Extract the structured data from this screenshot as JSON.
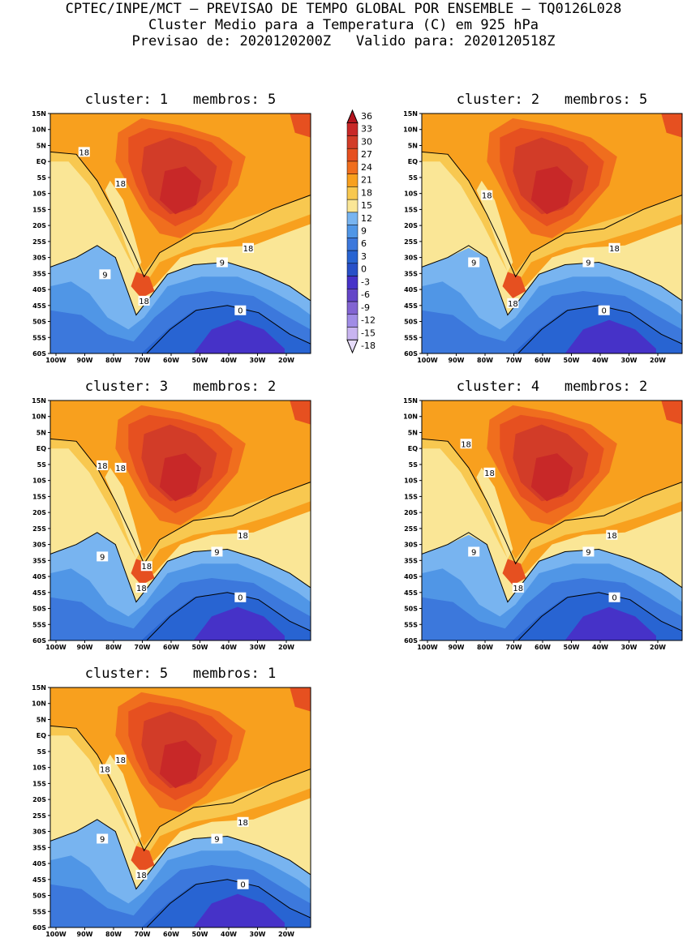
{
  "header": {
    "line1": "CPTEC/INPE/MCT – PREVISAO DE TEMPO GLOBAL POR ENSEMBLE – TQ0126L028",
    "line2": "Cluster Medio para a Temperatura (C) em 925 hPa",
    "line3": "Previsao de: 2020120200Z   Valido para: 2020120518Z"
  },
  "lat_ticks": [
    "15N",
    "10N",
    "5N",
    "EQ",
    "5S",
    "10S",
    "15S",
    "20S",
    "25S",
    "30S",
    "35S",
    "40S",
    "45S",
    "50S",
    "55S",
    "60S"
  ],
  "lon_ticks": [
    "100W",
    "90W",
    "80W",
    "70W",
    "60W",
    "50W",
    "40W",
    "30W",
    "20W"
  ],
  "colorbar": {
    "labels": [
      "36",
      "33",
      "30",
      "27",
      "24",
      "21",
      "18",
      "15",
      "12",
      "9",
      "6",
      "3",
      "0",
      "-3",
      "-6",
      "-9",
      "-12",
      "-15",
      "-18"
    ],
    "colors": [
      "#b4141e",
      "#c82828",
      "#d23c28",
      "#e65020",
      "#f06e1e",
      "#f8a01e",
      "#f8c850",
      "#fae696",
      "#78b4f0",
      "#5096e6",
      "#3c78dc",
      "#2864d2",
      "#2850c8",
      "#4632c8",
      "#6446c8",
      "#8264d2",
      "#a08ce6",
      "#c8b4f0",
      "#e6dcfa"
    ]
  },
  "panels": [
    {
      "title": "cluster: 1   membros: 5",
      "variant": 0,
      "labels": [
        [
          "18",
          0.13,
          0.16
        ],
        [
          "18",
          0.27,
          0.29
        ],
        [
          "18",
          0.76,
          0.56
        ],
        [
          "9",
          0.21,
          0.67
        ],
        [
          "9",
          0.66,
          0.62
        ],
        [
          "18",
          0.36,
          0.78
        ],
        [
          "0",
          0.73,
          0.82
        ]
      ]
    },
    {
      "title": "cluster: 2   membros: 5",
      "variant": 1,
      "labels": [
        [
          "18",
          0.25,
          0.34
        ],
        [
          "18",
          0.74,
          0.56
        ],
        [
          "9",
          0.2,
          0.62
        ],
        [
          "9",
          0.64,
          0.62
        ],
        [
          "18",
          0.35,
          0.79
        ],
        [
          "0",
          0.7,
          0.82
        ]
      ]
    },
    {
      "title": "cluster: 3   membros: 2",
      "variant": 2,
      "labels": [
        [
          "18",
          0.2,
          0.27
        ],
        [
          "18",
          0.27,
          0.28
        ],
        [
          "18",
          0.74,
          0.56
        ],
        [
          "9",
          0.2,
          0.65
        ],
        [
          "18",
          0.37,
          0.69
        ],
        [
          "9",
          0.64,
          0.63
        ],
        [
          "18",
          0.35,
          0.78
        ],
        [
          "0",
          0.73,
          0.82
        ]
      ]
    },
    {
      "title": "cluster: 4   membros: 2",
      "variant": 3,
      "labels": [
        [
          "18",
          0.17,
          0.18
        ],
        [
          "18",
          0.26,
          0.3
        ],
        [
          "18",
          0.73,
          0.56
        ],
        [
          "9",
          0.2,
          0.63
        ],
        [
          "9",
          0.64,
          0.63
        ],
        [
          "18",
          0.37,
          0.78
        ],
        [
          "0",
          0.74,
          0.82
        ]
      ]
    },
    {
      "title": "cluster: 5   membros: 1",
      "variant": 4,
      "labels": [
        [
          "18",
          0.21,
          0.34
        ],
        [
          "18",
          0.27,
          0.3
        ],
        [
          "18",
          0.74,
          0.56
        ],
        [
          "9",
          0.2,
          0.63
        ],
        [
          "9",
          0.64,
          0.63
        ],
        [
          "18",
          0.35,
          0.78
        ],
        [
          "0",
          0.74,
          0.82
        ]
      ]
    }
  ]
}
